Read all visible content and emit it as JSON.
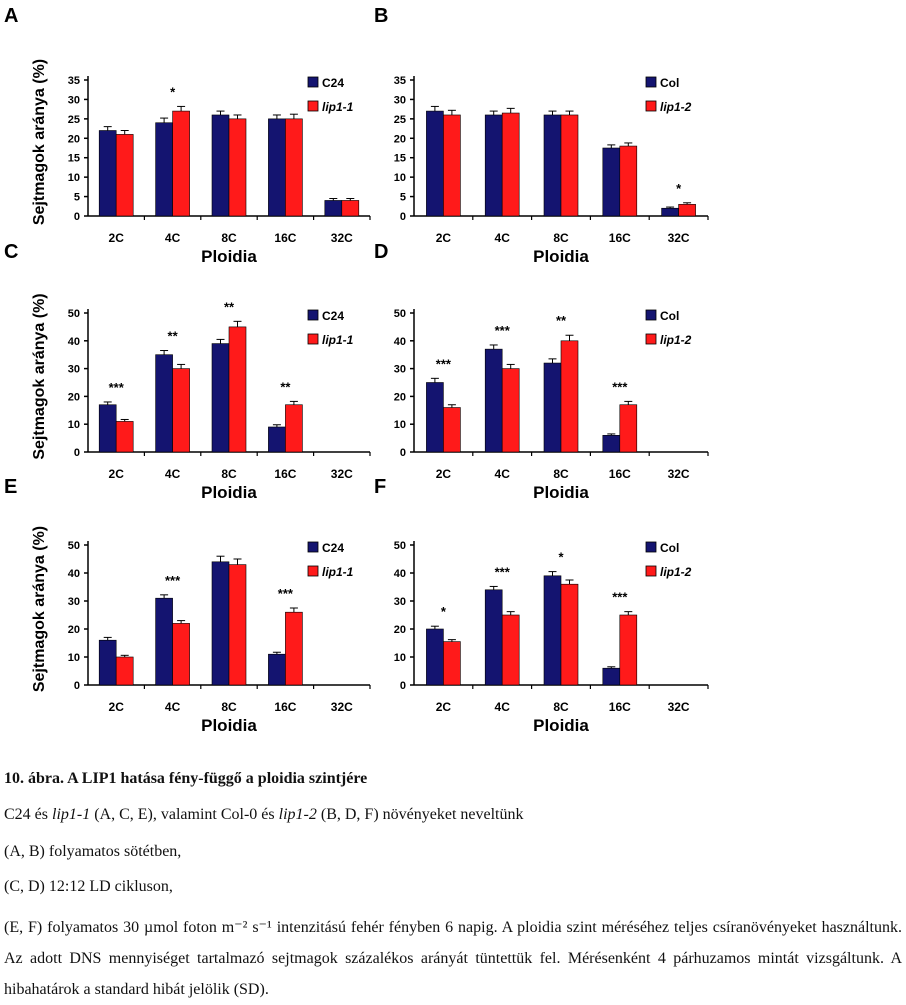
{
  "colors": {
    "first": "#141470",
    "second": "#ff1a1a",
    "axis": "#000000",
    "text": "#111111"
  },
  "chart_data": [
    {
      "panel_letter": "A",
      "type": "bar",
      "ylabel": "Sejtmagok aránya (%)",
      "xlabel": "Ploidia",
      "categories": [
        "2C",
        "4C",
        "8C",
        "16C",
        "32C"
      ],
      "yticks": [
        0,
        5,
        10,
        15,
        20,
        25,
        30,
        35
      ],
      "ylim": [
        0,
        35
      ],
      "legend": [
        "C24",
        "lip1-1"
      ],
      "legend_position": "top-right",
      "series": [
        {
          "name": "C24",
          "values": [
            22,
            24,
            26,
            25,
            4
          ]
        },
        {
          "name": "lip1-1",
          "values": [
            21,
            27,
            25,
            25,
            4
          ]
        }
      ],
      "errors": [
        [
          1,
          1.2,
          1,
          1,
          0.5
        ],
        [
          1,
          1.2,
          1,
          1.2,
          0.5
        ]
      ],
      "annotations": [
        {
          "category": "4C",
          "text": "*"
        }
      ]
    },
    {
      "panel_letter": "B",
      "type": "bar",
      "ylabel": "",
      "xlabel": "Ploidia",
      "categories": [
        "2C",
        "4C",
        "8C",
        "16C",
        "32C"
      ],
      "yticks": [
        0,
        5,
        10,
        15,
        20,
        25,
        30,
        35
      ],
      "ylim": [
        0,
        35
      ],
      "legend": [
        "Col",
        "lip1-2"
      ],
      "legend_position": "top-right",
      "series": [
        {
          "name": "Col",
          "values": [
            27,
            26,
            26,
            17.5,
            2
          ]
        },
        {
          "name": "lip1-2",
          "values": [
            26,
            26.5,
            26,
            18,
            3
          ]
        }
      ],
      "errors": [
        [
          1.2,
          1,
          1,
          0.8,
          0.3
        ],
        [
          1.2,
          1.2,
          1,
          0.8,
          0.4
        ]
      ],
      "annotations": [
        {
          "category": "32C",
          "text": "*"
        }
      ]
    },
    {
      "panel_letter": "C",
      "type": "bar",
      "ylabel": "Sejtmagok aránya (%)",
      "xlabel": "Ploidia",
      "categories": [
        "2C",
        "4C",
        "8C",
        "16C",
        "32C"
      ],
      "yticks": [
        0,
        10,
        20,
        30,
        40,
        50
      ],
      "ylim": [
        0,
        50
      ],
      "legend": [
        "C24",
        "lip1-1"
      ],
      "legend_position": "top-right",
      "series": [
        {
          "name": "C24",
          "values": [
            17,
            35,
            39,
            9,
            0
          ]
        },
        {
          "name": "lip1-1",
          "values": [
            11,
            30,
            45,
            17,
            0
          ]
        }
      ],
      "errors": [
        [
          1,
          1.5,
          1.5,
          0.8,
          0
        ],
        [
          0.7,
          1.5,
          2,
          1.2,
          0
        ]
      ],
      "annotations": [
        {
          "category": "2C",
          "text": "***"
        },
        {
          "category": "4C",
          "text": "**"
        },
        {
          "category": "8C",
          "text": "**"
        },
        {
          "category": "16C",
          "text": "**"
        }
      ]
    },
    {
      "panel_letter": "D",
      "type": "bar",
      "ylabel": "",
      "xlabel": "Ploidia",
      "categories": [
        "2C",
        "4C",
        "8C",
        "16C",
        "32C"
      ],
      "yticks": [
        0,
        10,
        20,
        30,
        40,
        50
      ],
      "ylim": [
        0,
        50
      ],
      "legend": [
        "Col",
        "lip1-2"
      ],
      "legend_position": "top-right",
      "series": [
        {
          "name": "Col",
          "values": [
            25,
            37,
            32,
            6,
            0
          ]
        },
        {
          "name": "lip1-2",
          "values": [
            16,
            30,
            40,
            17,
            0
          ]
        }
      ],
      "errors": [
        [
          1.5,
          1.5,
          1.5,
          0.5,
          0
        ],
        [
          1,
          1.5,
          2,
          1.2,
          0
        ]
      ],
      "annotations": [
        {
          "category": "2C",
          "text": "***"
        },
        {
          "category": "4C",
          "text": "***"
        },
        {
          "category": "8C",
          "text": "**"
        },
        {
          "category": "16C",
          "text": "***"
        }
      ]
    },
    {
      "panel_letter": "E",
      "type": "bar",
      "ylabel": "Sejtmagok aránya (%)",
      "xlabel": "Ploidia",
      "categories": [
        "2C",
        "4C",
        "8C",
        "16C",
        "32C"
      ],
      "yticks": [
        0,
        10,
        20,
        30,
        40,
        50
      ],
      "ylim": [
        0,
        50
      ],
      "legend": [
        "C24",
        "lip1-1"
      ],
      "legend_position": "top-right",
      "series": [
        {
          "name": "C24",
          "values": [
            16,
            31,
            44,
            11,
            0
          ]
        },
        {
          "name": "lip1-1",
          "values": [
            10,
            22,
            43,
            26,
            0
          ]
        }
      ],
      "errors": [
        [
          1,
          1.2,
          2,
          0.7,
          0
        ],
        [
          0.6,
          1,
          2,
          1.5,
          0
        ]
      ],
      "annotations": [
        {
          "category": "4C",
          "text": "***"
        },
        {
          "category": "16C",
          "text": "***"
        }
      ]
    },
    {
      "panel_letter": "F",
      "type": "bar",
      "ylabel": "",
      "xlabel": "Ploidia",
      "categories": [
        "2C",
        "4C",
        "8C",
        "16C",
        "32C"
      ],
      "yticks": [
        0,
        10,
        20,
        30,
        40,
        50
      ],
      "ylim": [
        0,
        50
      ],
      "legend": [
        "Col",
        "lip1-2"
      ],
      "legend_position": "top-right",
      "series": [
        {
          "name": "Col",
          "values": [
            20,
            34,
            39,
            6,
            0
          ]
        },
        {
          "name": "lip1-2",
          "values": [
            15.5,
            25,
            36,
            25,
            0
          ]
        }
      ],
      "errors": [
        [
          1,
          1.2,
          1.5,
          0.5,
          0
        ],
        [
          0.7,
          1.2,
          1.5,
          1.2,
          0
        ]
      ],
      "annotations": [
        {
          "category": "2C",
          "text": "*"
        },
        {
          "category": "4C",
          "text": "***"
        },
        {
          "category": "8C",
          "text": "*"
        },
        {
          "category": "16C",
          "text": "***"
        }
      ]
    }
  ],
  "caption": {
    "title": "10. ábra. A LIP1 hatása fény-függő a ploidia szintjére",
    "line1_a": "C24 és ",
    "line1_b": "lip1-1",
    "line1_c": " (A, C, E), valamint Col-0 és ",
    "line1_d": "lip1-2",
    "line1_e": " (B, D, F) növényeket neveltünk",
    "line2": "(A, B) folyamatos sötétben,",
    "line3": "(C, D) 12:12 LD cikluson,",
    "line4": "(E, F) folyamatos 30 µmol foton m⁻² s⁻¹ intenzitású fehér fényben 6 napig. A ploidia szint méréséhez teljes csíranövényeket használtunk. Az adott DNS mennyiséget tartalmazó sejtmagok százalékos arányát tüntettük fel. Mérésenként 4 párhuzamos mintát vizsgáltunk. A hibahatárok a standard hibát jelölik (SD)."
  }
}
